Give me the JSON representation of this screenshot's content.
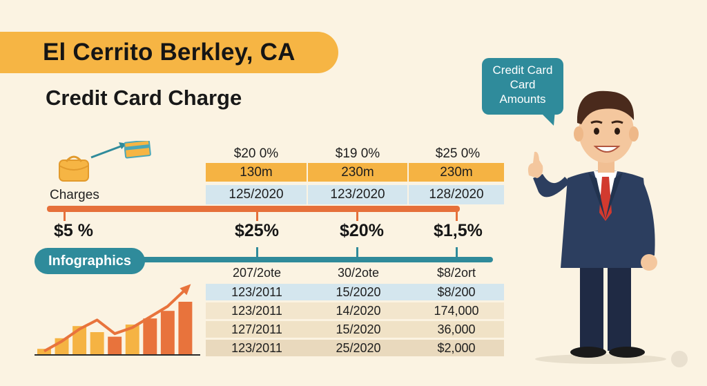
{
  "title": "El Cerrito Berkley, CA",
  "subtitle": "Credit Card Charge",
  "charges_label": "Charges",
  "top_table": {
    "headers": [
      "$20 0%",
      "$19 0%",
      "$25 0%"
    ],
    "orange_row": [
      "130m",
      "230m",
      "230m"
    ],
    "blue_row": [
      "125/2020",
      "123/2020",
      "128/2020"
    ]
  },
  "percent_labels": [
    "$5 %",
    "$25%",
    "$20%",
    "$1,5%"
  ],
  "infographics_label": "Infographics",
  "bottom_table": {
    "headers": [
      "207/2ote",
      "30/2ote",
      "$8/2ort"
    ],
    "rows": [
      [
        "123/2011",
        "15/2020",
        "$8/200"
      ],
      [
        "123/2011",
        "14/2020",
        "174,000"
      ],
      [
        "127/2011",
        "15/2020",
        "36,000"
      ],
      [
        "123/2011",
        "25/2020",
        "$2,000"
      ]
    ]
  },
  "bubble": {
    "lines": [
      "Credit Card",
      "Card",
      "Amounts"
    ]
  },
  "chart_data": {
    "type": "bar",
    "categories": [
      "1",
      "2",
      "3",
      "4",
      "5",
      "6",
      "7",
      "8",
      "9"
    ],
    "values": [
      8,
      22,
      38,
      30,
      24,
      40,
      48,
      58,
      70
    ],
    "trend": [
      5,
      18,
      34,
      46,
      28,
      36,
      50,
      64,
      86
    ],
    "colors": [
      "#f5b343",
      "#f5b343",
      "#f5b343",
      "#f5b343",
      "#e8733c",
      "#f5b343",
      "#e8733c",
      "#e8733c",
      "#e8733c"
    ],
    "trend_color": "#e8733c",
    "ylim": [
      0,
      100
    ]
  },
  "colors": {
    "banner": "#f6b544",
    "orange": "#e6703a",
    "teal": "#2f8b9b",
    "light_blue": "#d4e6ee",
    "background": "#fbf3e2"
  }
}
